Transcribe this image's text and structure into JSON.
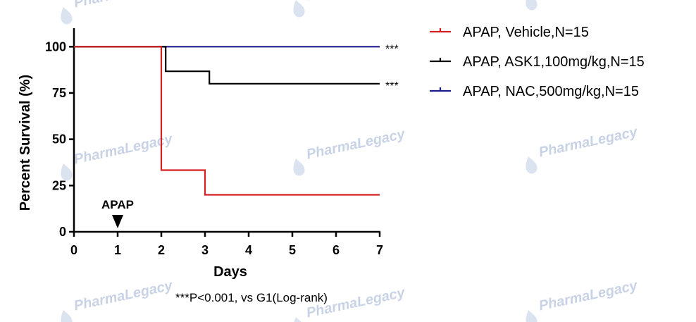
{
  "watermark": {
    "text": "PharmaLegacy"
  },
  "chart_data": {
    "type": "line",
    "subtype": "kaplan-meier step survival",
    "xlabel": "Days",
    "ylabel": "Percent Survival (%)",
    "xlim": [
      0,
      7
    ],
    "ylim": [
      0,
      110
    ],
    "xticks": [
      0,
      1,
      2,
      3,
      4,
      5,
      6,
      7
    ],
    "yticks": [
      0,
      25,
      50,
      75,
      100
    ],
    "grid": false,
    "legend_position": "right",
    "series": [
      {
        "name": "APAP, Vehicle,N=15",
        "color": "#d42020",
        "points": [
          [
            0,
            100
          ],
          [
            2,
            100
          ],
          [
            2,
            33.3
          ],
          [
            3,
            33.3
          ],
          [
            3,
            20
          ],
          [
            7,
            20
          ]
        ]
      },
      {
        "name": "APAP, ASK1,100mg/kg,N=15",
        "color": "#000000",
        "points": [
          [
            0,
            100
          ],
          [
            2.1,
            100
          ],
          [
            2.1,
            86.7
          ],
          [
            3.1,
            86.7
          ],
          [
            3.1,
            80
          ],
          [
            7,
            80
          ]
        ],
        "significance": "***"
      },
      {
        "name": "APAP, NAC,500mg/kg,N=15",
        "color": "#1c1c8c",
        "points": [
          [
            0,
            100
          ],
          [
            7,
            100
          ]
        ],
        "significance": "***"
      }
    ],
    "annotations": [
      {
        "text": "APAP",
        "x": 1,
        "marker": "down-triangle"
      }
    ],
    "footnote": "***P<0.001, vs G1(Log-rank)"
  }
}
